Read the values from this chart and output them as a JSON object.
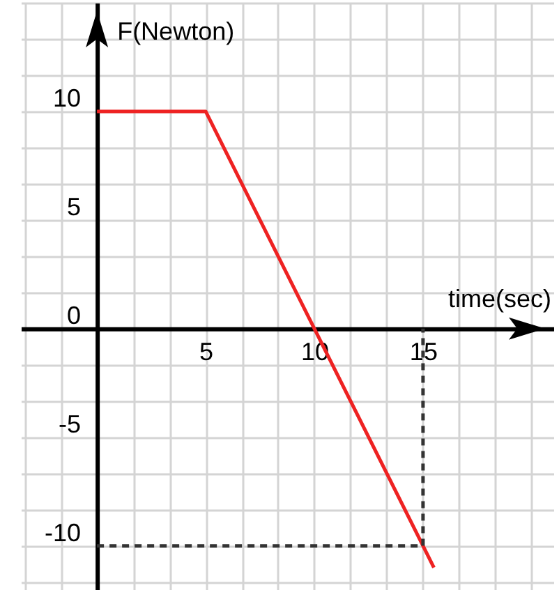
{
  "chart_data": {
    "type": "line",
    "xlabel": "time(sec)",
    "ylabel": "F(Newton)",
    "xlim": [
      -3.5,
      21
    ],
    "ylim": [
      -12,
      15
    ],
    "xticks": [
      {
        "value": -3.333,
        "label": null
      },
      {
        "value": -1.667,
        "label": null
      },
      {
        "value": 0,
        "label": null
      },
      {
        "value": 1.667,
        "label": null
      },
      {
        "value": 3.333,
        "label": null
      },
      5,
      {
        "value": 6.667,
        "label": null
      },
      {
        "value": 8.333,
        "label": null
      },
      10,
      {
        "value": 11.667,
        "label": null
      },
      {
        "value": 13.333,
        "label": null
      },
      15,
      {
        "value": 16.667,
        "label": null
      },
      {
        "value": 18.333,
        "label": null
      },
      {
        "value": 20,
        "label": null
      }
    ],
    "yticks": [
      {
        "value": -11.667,
        "label": null
      },
      -10,
      {
        "value": -8.333,
        "label": null
      },
      {
        "value": -6.667,
        "label": null
      },
      -5,
      {
        "value": -3.333,
        "label": null
      },
      {
        "value": -1.667,
        "label": null
      },
      0,
      {
        "value": 1.667,
        "label": null
      },
      {
        "value": 3.333,
        "label": null
      },
      5,
      {
        "value": 6.667,
        "label": null
      },
      {
        "value": 8.333,
        "label": null
      },
      10,
      {
        "value": 11.667,
        "label": null
      },
      {
        "value": 13.333,
        "label": null
      },
      {
        "value": 15,
        "label": null
      }
    ],
    "grid": true,
    "series": [
      {
        "color": "#ee2222",
        "line_style": "solid",
        "x": [
          0,
          5,
          15.5
        ],
        "values": [
          10,
          10,
          -11
        ]
      },
      {
        "color": "#333333",
        "line_style": "dashed",
        "x": [
          0,
          15,
          15
        ],
        "values": [
          -10,
          -10,
          0
        ]
      }
    ]
  }
}
